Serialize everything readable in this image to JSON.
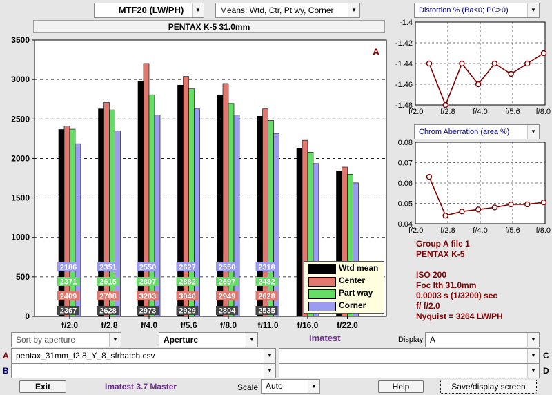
{
  "toolbar": {
    "measure_select": "MTF20 (LW/PH)",
    "means_select": "Means: Wtd, Ctr, Pt wy, Corner",
    "title": "PENTAX K-5    31.0mm"
  },
  "colors": {
    "wtd_mean": "#000000",
    "center": "#e07870",
    "part_way": "#66dd66",
    "corner": "#9b9bf0",
    "side_chart_line": "#800000",
    "info_text": "#800000",
    "imatest_text": "#6a2c8a"
  },
  "chart_data": [
    {
      "type": "bar",
      "categories": [
        "f/2.0",
        "f/2.8",
        "f/4.0",
        "f/5.6",
        "f/8.0",
        "f/11.0",
        "f/16.0",
        "f/22.0"
      ],
      "series": [
        {
          "name": "Wtd mean",
          "values": [
            2367,
            2628,
            2973,
            2929,
            2804,
            2535,
            2130,
            1840
          ]
        },
        {
          "name": "Center",
          "values": [
            2409,
            2708,
            3203,
            3040,
            2949,
            2628,
            2230,
            1890
          ]
        },
        {
          "name": "Part way",
          "values": [
            2371,
            2615,
            2807,
            2882,
            2697,
            2482,
            2080,
            1800
          ]
        },
        {
          "name": "Corner",
          "values": [
            2186,
            2351,
            2550,
            2627,
            2550,
            2318,
            1935,
            1690
          ]
        }
      ],
      "data_labels": {
        "Wtd mean": [
          "2367",
          "2628",
          "2973",
          "2929",
          "2804",
          "2535",
          "",
          ""
        ],
        "Center": [
          "2409",
          "2708",
          "3203",
          "3040",
          "2949",
          "2628",
          "",
          ""
        ],
        "Part way": [
          "2371",
          "2615",
          "2807",
          "2882",
          "2697",
          "2482",
          "",
          ""
        ],
        "Corner": [
          "2186",
          "2351",
          "2550",
          "2627",
          "2550",
          "2318",
          "",
          ""
        ]
      },
      "yticks": [
        0,
        500,
        1000,
        1500,
        2000,
        2500,
        3000,
        3500
      ],
      "ylim": [
        0,
        3500
      ],
      "annotation": "A",
      "legend": "bottom-right",
      "grid": "horizontal dashed"
    },
    {
      "type": "line",
      "x": [
        2.0,
        2.8,
        4.0,
        5.6,
        8.0,
        11.0,
        16.0,
        22.0
      ],
      "values": [
        -1.44,
        -1.48,
        -1.44,
        -1.46,
        -1.44,
        -1.45,
        -1.44,
        -1.43
      ],
      "xticks": [
        "f/2.0",
        "f/2.8",
        "f/4.0",
        "f/5.6",
        "f/8.0"
      ],
      "yticks": [
        "-1.4",
        "-1.42",
        "-1.44",
        "-1.46",
        "-1.48"
      ],
      "ylim": [
        -1.48,
        -1.4
      ],
      "grid": "dashed"
    },
    {
      "type": "line",
      "x": [
        2.0,
        2.8,
        4.0,
        5.6,
        8.0,
        11.0,
        16.0,
        22.0
      ],
      "values": [
        0.063,
        0.044,
        0.046,
        0.047,
        0.048,
        0.0495,
        0.0495,
        0.0505
      ],
      "xticks": [
        "f/2.0",
        "f/2.8",
        "f/4.0",
        "f/5.6",
        "f/8.0"
      ],
      "yticks": [
        "0.08",
        "0.07",
        "0.06",
        "0.05",
        "0.04"
      ],
      "ylim": [
        0.04,
        0.08
      ],
      "grid": "dashed"
    }
  ],
  "side_charts": {
    "distortion_select": "Distortion %  (Ba<0; PC>0)",
    "chrom_select": "Chrom Aberration (area %)"
  },
  "info": {
    "line1": "Group A file 1",
    "line2": "PENTAX K-5",
    "line3": "ISO  200",
    "line4": "Foc lth  31.0mm",
    "line5": "0.0003 s  (1/3200)  sec",
    "line6": "f/  f/2.0",
    "line7": "Nyquist = 3264 LW/PH"
  },
  "controls": {
    "sort_select": "Sort by aperture",
    "aperture_select": "Aperture",
    "imatest_label": "Imatest",
    "display_label": "Display",
    "display_select": "A",
    "row_a_label": "A",
    "row_b_label": "B",
    "row_c_label": "C",
    "row_d_label": "D",
    "file_a": "pentax_31mm_f2.8_Y_8_sfrbatch.csv",
    "file_b": "",
    "file_c": "",
    "file_d": ""
  },
  "footer": {
    "exit_button": "Exit",
    "version": "Imatest 3.7 Master",
    "scale_label": "Scale",
    "scale_select": "Auto",
    "help_button": "Help",
    "save_button": "Save/display screen"
  }
}
